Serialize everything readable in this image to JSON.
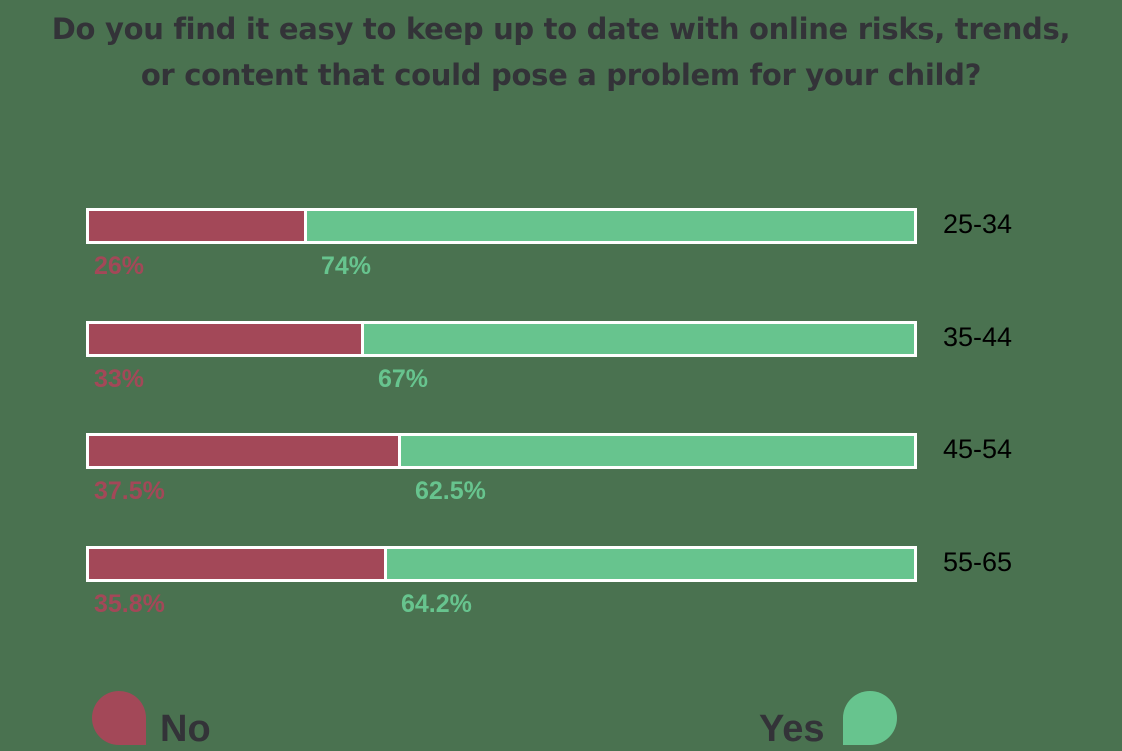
{
  "chart_data": {
    "type": "bar",
    "stacked": true,
    "orientation": "horizontal",
    "title": "Do you find it easy to keep up to date with online risks, trends, or content that could pose a problem for your child?",
    "categories": [
      "25-34",
      "35-44",
      "45-54",
      "55-65"
    ],
    "series": [
      {
        "name": "No",
        "color": "#a34858",
        "values": [
          26,
          33,
          37.5,
          35.8
        ],
        "labels": [
          "26%",
          "33%",
          "37.5%",
          "35.8%"
        ]
      },
      {
        "name": "Yes",
        "color": "#67c48e",
        "values": [
          74,
          67,
          62.5,
          64.2
        ],
        "labels": [
          "74%",
          "67%",
          "62.5%",
          "64.2%"
        ]
      }
    ],
    "xlim": [
      0,
      100
    ],
    "legend_position": "bottom"
  },
  "title_line1": "Do you find it easy to keep up to date with online risks, trends,",
  "title_line2": "or content that could pose a problem for your child?",
  "rows": [
    {
      "age": "25-34",
      "no": "26%",
      "yes": "74%"
    },
    {
      "age": "35-44",
      "no": "33%",
      "yes": "67%"
    },
    {
      "age": "45-54",
      "no": "37.5%",
      "yes": "62.5%"
    },
    {
      "age": "55-65",
      "no": "35.8%",
      "yes": "64.2%"
    }
  ],
  "legend": {
    "no": "No",
    "yes": "Yes"
  },
  "colors": {
    "no": "#a34858",
    "yes": "#67c48e",
    "background": "#4a7250",
    "text": "#333338"
  }
}
